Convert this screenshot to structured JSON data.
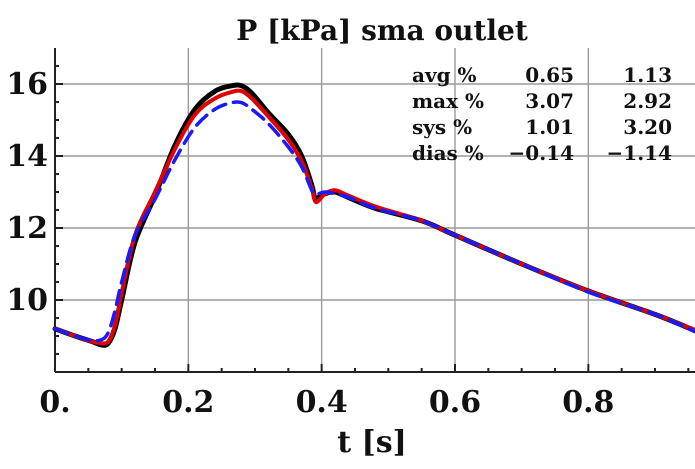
{
  "chart_data": {
    "type": "line",
    "title": "P [kPa] sma outlet",
    "xlabel": "t [s]",
    "ylabel": "",
    "xlim": [
      0,
      0.96
    ],
    "ylim": [
      8.0,
      17.0
    ],
    "grid": true,
    "x_ticks": [
      0,
      0.2,
      0.4,
      0.6,
      0.8
    ],
    "x_tick_labels": [
      "0.",
      "0.2",
      "0.4",
      "0.6",
      "0.8"
    ],
    "y_ticks": [
      10,
      12,
      14,
      16
    ],
    "y_tick_labels": [
      "10",
      "12",
      "14",
      "16"
    ],
    "series": [
      {
        "color": "#000000",
        "dash": "solid",
        "x": [
          0,
          0.03,
          0.055,
          0.07,
          0.08,
          0.09,
          0.1,
          0.12,
          0.15,
          0.18,
          0.21,
          0.24,
          0.265,
          0.28,
          0.295,
          0.32,
          0.35,
          0.37,
          0.385,
          0.39,
          0.395,
          0.405,
          0.42,
          0.44,
          0.48,
          0.55,
          0.6,
          0.7,
          0.8,
          0.9,
          0.96
        ],
        "y": [
          9.2,
          9.0,
          8.85,
          8.75,
          8.8,
          9.2,
          10.0,
          11.6,
          12.9,
          14.3,
          15.3,
          15.8,
          15.95,
          15.95,
          15.75,
          15.2,
          14.6,
          14.0,
          13.2,
          12.8,
          12.85,
          12.95,
          13.0,
          12.85,
          12.55,
          12.2,
          11.8,
          11.0,
          10.25,
          9.6,
          9.15
        ]
      },
      {
        "color": "#e00000",
        "dash": "solid",
        "x": [
          0,
          0.03,
          0.055,
          0.07,
          0.08,
          0.09,
          0.1,
          0.12,
          0.15,
          0.18,
          0.21,
          0.24,
          0.265,
          0.28,
          0.295,
          0.32,
          0.35,
          0.37,
          0.385,
          0.39,
          0.395,
          0.405,
          0.42,
          0.44,
          0.48,
          0.55,
          0.6,
          0.7,
          0.8,
          0.9,
          0.96
        ],
        "y": [
          9.2,
          9.0,
          8.85,
          8.8,
          8.85,
          9.3,
          10.2,
          11.8,
          13.0,
          14.2,
          15.15,
          15.6,
          15.78,
          15.8,
          15.6,
          15.1,
          14.45,
          13.85,
          13.1,
          12.75,
          12.75,
          12.95,
          13.05,
          12.9,
          12.6,
          12.2,
          11.8,
          11.0,
          10.25,
          9.6,
          9.15
        ]
      },
      {
        "color": "#1a1aff",
        "dash": "dashed",
        "x": [
          0,
          0.03,
          0.055,
          0.07,
          0.08,
          0.09,
          0.1,
          0.12,
          0.15,
          0.18,
          0.21,
          0.24,
          0.265,
          0.28,
          0.295,
          0.32,
          0.35,
          0.37,
          0.385,
          0.39,
          0.395,
          0.405,
          0.42,
          0.44,
          0.48,
          0.55,
          0.6,
          0.7,
          0.8,
          0.9,
          0.96
        ],
        "y": [
          9.2,
          9.0,
          8.88,
          8.9,
          9.1,
          9.7,
          10.5,
          11.8,
          12.8,
          13.9,
          14.8,
          15.3,
          15.48,
          15.48,
          15.3,
          14.9,
          14.25,
          13.7,
          13.05,
          12.95,
          12.95,
          13.0,
          12.95,
          12.85,
          12.55,
          12.2,
          11.8,
          11.0,
          10.22,
          9.6,
          9.12
        ]
      }
    ],
    "annotations": [
      {
        "label": "avg %",
        "v1": "0.65",
        "v2": "1.13"
      },
      {
        "label": "max %",
        "v1": "3.07",
        "v2": "2.92"
      },
      {
        "label": "sys  %",
        "v1": "1.01",
        "v2": "3.20"
      },
      {
        "label": "dias %",
        "v1": "−0.14",
        "v2": "−1.14"
      }
    ]
  }
}
